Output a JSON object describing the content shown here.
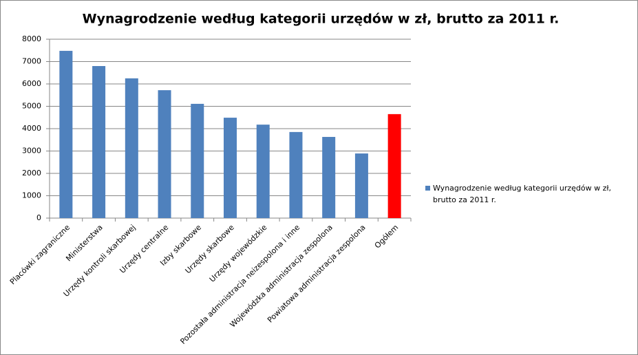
{
  "chart_data": {
    "type": "bar",
    "title": "Wynagrodzenie według kategorii urzędów w zł, brutto za 2011 r.",
    "categories": [
      "Placówki zagraniczne",
      "Ministerstwa",
      "Urzędy kontroli skarbowej",
      "Urzędy centralne",
      "Izby skarbowe",
      "Urzędy skarbowe",
      "Urzędy wojewódzkie",
      "Pozostała administracja neizespolona i inne",
      "Wojewódzka administracja zespolona",
      "Powiatowa administracja zespolona",
      "Ogółem"
    ],
    "series": [
      {
        "name": "Wynagrodzenie według kategorii urzędów w zł, brutto za 2011 r.",
        "color": "#4f81bd",
        "values": [
          7480,
          6800,
          6250,
          5720,
          5110,
          4490,
          4180,
          3850,
          3630,
          2890,
          4650
        ]
      }
    ],
    "bar_colors": [
      "#4f81bd",
      "#4f81bd",
      "#4f81bd",
      "#4f81bd",
      "#4f81bd",
      "#4f81bd",
      "#4f81bd",
      "#4f81bd",
      "#4f81bd",
      "#4f81bd",
      "#ff0000"
    ],
    "ylim": [
      0,
      8000
    ],
    "yticks": [
      0,
      1000,
      2000,
      3000,
      4000,
      5000,
      6000,
      7000,
      8000
    ],
    "grid": true,
    "legend": "right"
  }
}
